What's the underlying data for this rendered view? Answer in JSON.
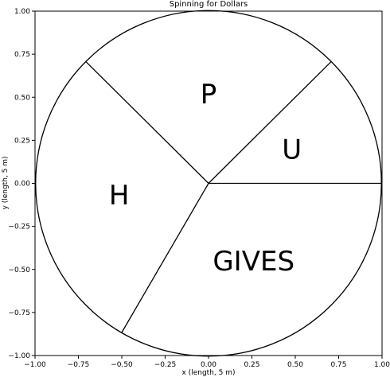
{
  "chart_data": {
    "type": "pie",
    "title": "Spinning for Dollars",
    "xlabel": "x (length, 5 m)",
    "ylabel": "y (length, 5 m)",
    "xlim": [
      -1.0,
      1.0
    ],
    "ylim": [
      -1.0,
      1.0
    ],
    "xticks": [
      "−1.00",
      "−0.75",
      "−0.50",
      "−0.25",
      "0.00",
      "0.25",
      "0.50",
      "0.75",
      "1.00"
    ],
    "yticks": [
      "−1.00",
      "−0.75",
      "−0.50",
      "−0.25",
      "0.00",
      "0.25",
      "0.50",
      "0.75",
      "1.00"
    ],
    "grid": false,
    "circle": {
      "center": [
        0,
        0
      ],
      "radius": 1
    },
    "boundary_angles_deg": [
      0,
      45,
      135,
      240
    ],
    "sectors": [
      {
        "label": "U",
        "start_deg": 0,
        "end_deg": 45
      },
      {
        "label": "P",
        "start_deg": 45,
        "end_deg": 135
      },
      {
        "label": "H",
        "start_deg": 135,
        "end_deg": 240
      },
      {
        "label": "GIVES",
        "start_deg": 240,
        "end_deg": 360
      }
    ]
  }
}
